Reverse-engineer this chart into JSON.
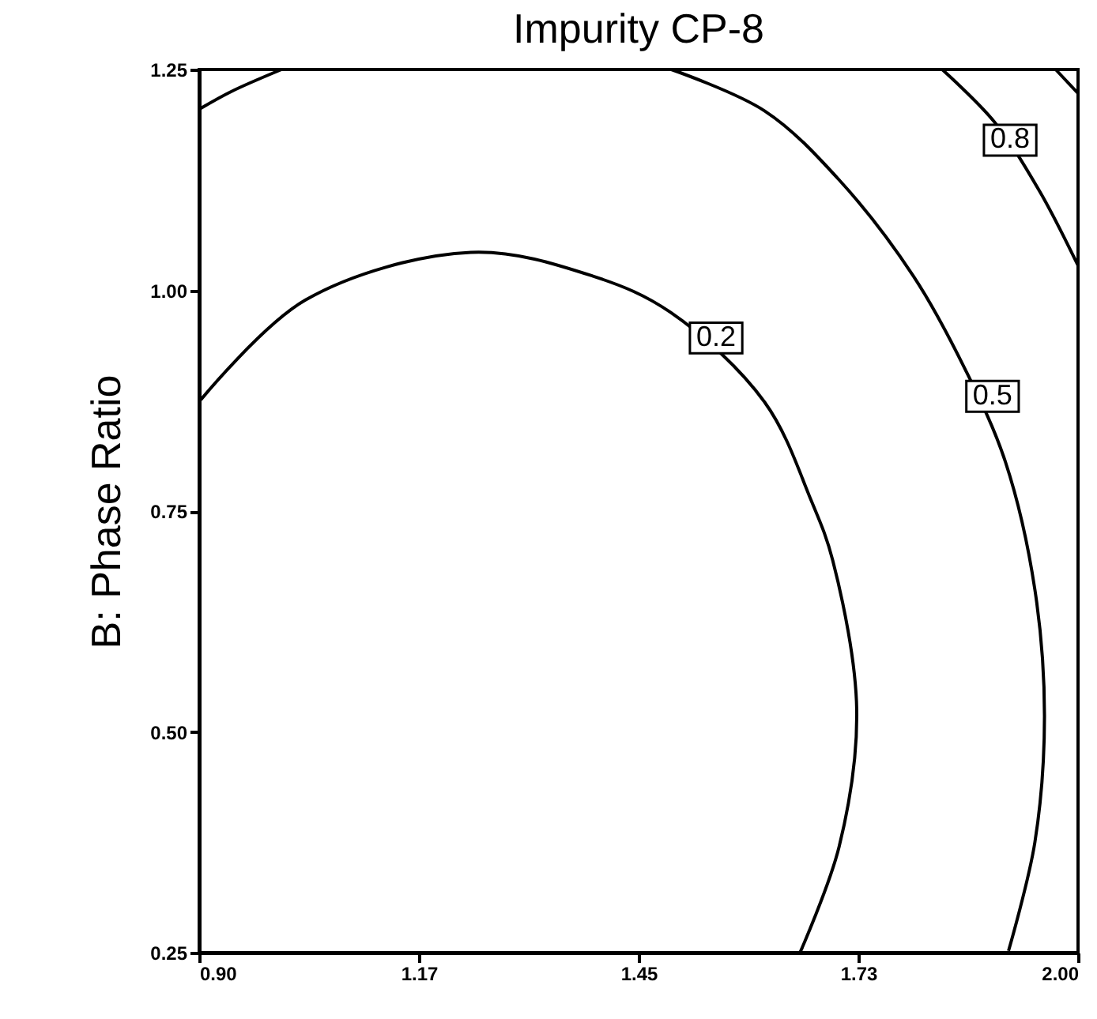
{
  "chart_data": {
    "type": "line",
    "title": "Impurity CP-8",
    "ylabel": "B: Phase Ratio",
    "xlim": [
      0.9,
      2.0
    ],
    "ylim": [
      0.25,
      1.25
    ],
    "xticks": [
      {
        "value": 0.9,
        "label": "0.90"
      },
      {
        "value": 1.175,
        "label": "1.17"
      },
      1.45,
      {
        "value": 1.725,
        "label": "1.73"
      },
      {
        "value": 2.0,
        "label": "2.00"
      }
    ],
    "yticks": [
      0.25,
      {
        "value": 0.5,
        "label": "0.50"
      },
      0.75,
      {
        "value": 1.0,
        "label": "1.00"
      },
      1.25
    ],
    "grid": false,
    "marker": "none",
    "series": [
      {
        "color": "#000000",
        "x": [
          0.902,
          1.033,
          1.24,
          1.393,
          1.49,
          1.608,
          1.666,
          1.693,
          1.723,
          1.701,
          1.652
        ],
        "values": [
          0.876,
          0.989,
          1.043,
          1.016,
          0.975,
          0.873,
          0.762,
          0.694,
          0.525,
          0.37,
          0.25
        ]
      },
      {
        "color": "#000000",
        "x": [
          0.9,
          0.94,
          1.003,
          null,
          1.491,
          1.608,
          1.701,
          1.794,
          1.859,
          1.909,
          1.946,
          1.958,
          1.946,
          1.913
        ],
        "values": [
          1.205,
          1.225,
          1.25,
          null,
          1.25,
          1.203,
          1.125,
          1.016,
          0.91,
          0.806,
          0.661,
          0.518,
          0.375,
          0.252
        ]
      },
      {
        "color": "#000000",
        "x": [
          1.83,
          1.895,
          1.952,
          2.0
        ],
        "values": [
          1.25,
          1.191,
          1.112,
          1.028
        ]
      },
      {
        "color": "#000000",
        "x": [
          1.972,
          2.0
        ],
        "values": [
          1.25,
          1.223
        ]
      }
    ],
    "annotations": [
      {
        "text": "0.2",
        "x": 1.547,
        "y": 0.946
      },
      {
        "text": "0.5",
        "x": 1.893,
        "y": 0.88
      },
      {
        "text": "0.8",
        "x": 1.915,
        "y": 1.17
      }
    ]
  }
}
